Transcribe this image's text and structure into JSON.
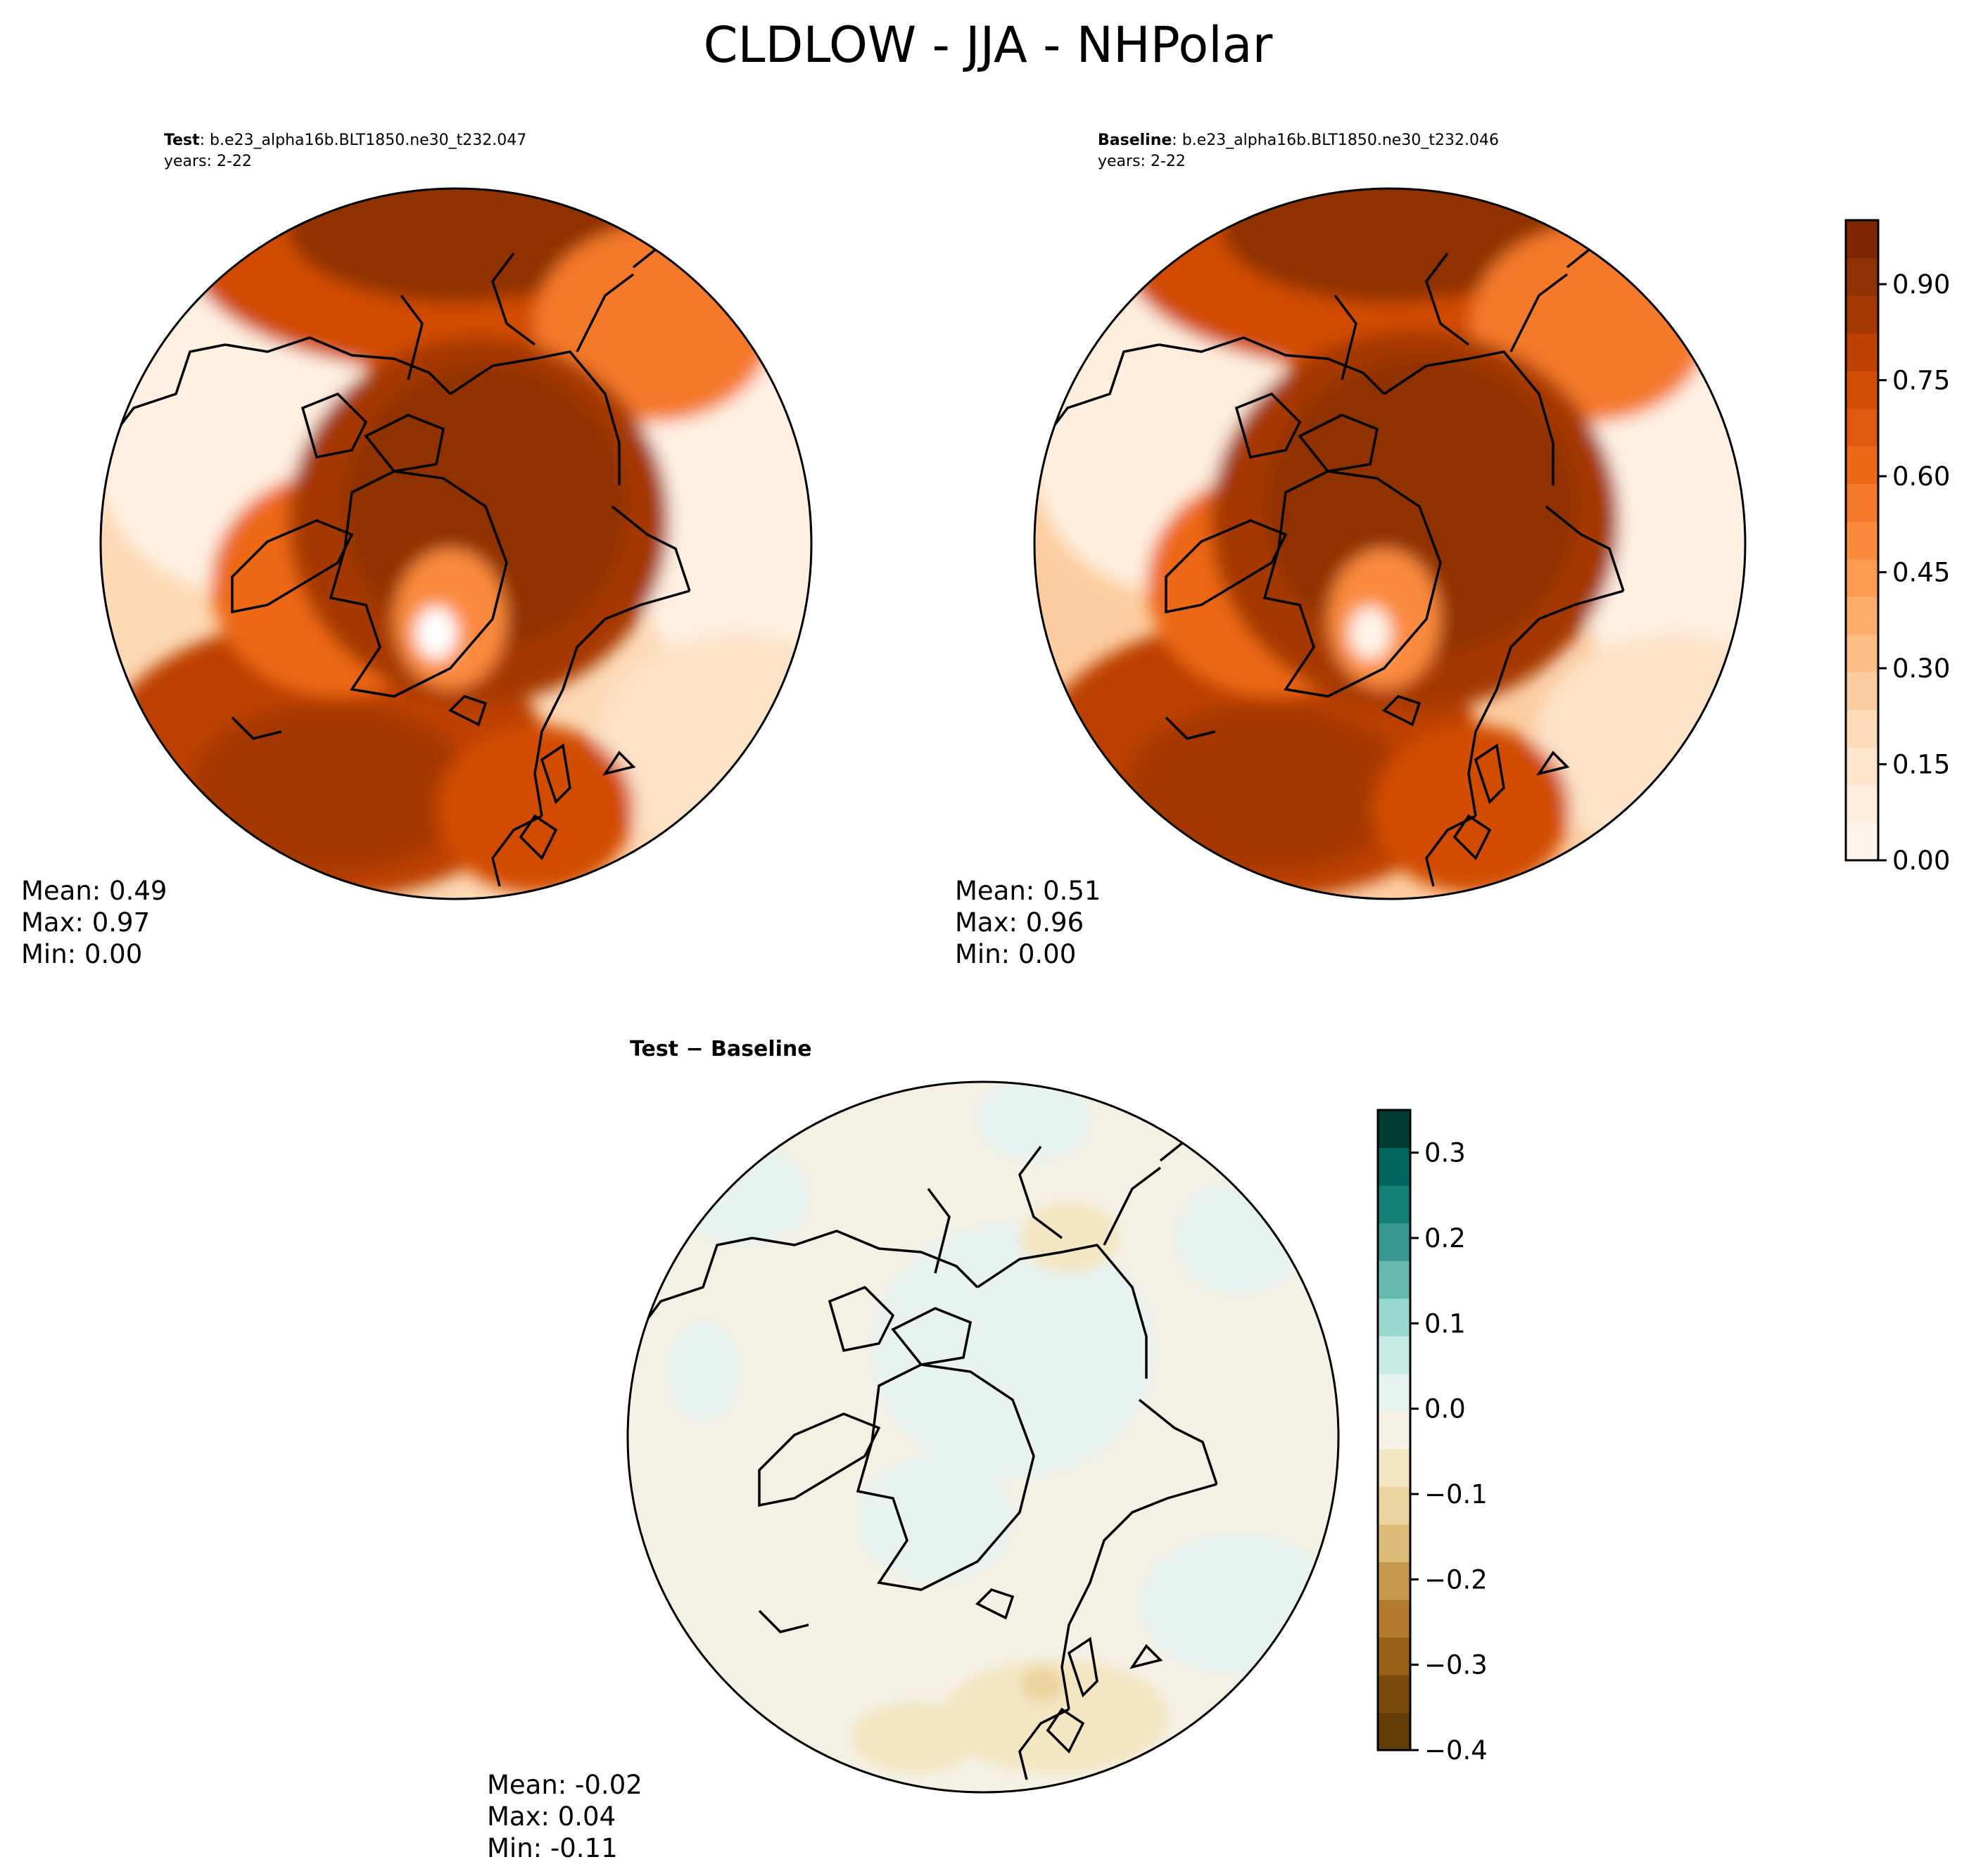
{
  "figure": {
    "title": "CLDLOW - JJA - NHPolar"
  },
  "chart_data": [
    {
      "type": "heatmap",
      "projection": "north-polar-stereographic",
      "panel": "test",
      "label_bold": "Test",
      "case_name": ": b.e23_alpha16b.BLT1850.ne30_t232.047",
      "years": "years: 2-22",
      "stats": {
        "mean": "Mean:  0.49",
        "max": "Max:  0.97",
        "min": "Min:  0.00"
      },
      "pole_value": 0.85,
      "color_range": [
        0.0,
        1.0
      ]
    },
    {
      "type": "heatmap",
      "projection": "north-polar-stereographic",
      "panel": "baseline",
      "label_bold": "Baseline",
      "case_name": ": b.e23_alpha16b.BLT1850.ne30_t232.046",
      "years": "years: 2-22",
      "stats": {
        "mean": "Mean:  0.51",
        "max": "Max:  0.96",
        "min": "Min:  0.00"
      },
      "pole_value": 0.88,
      "color_range": [
        0.0,
        1.0
      ]
    },
    {
      "type": "heatmap",
      "projection": "north-polar-stereographic",
      "panel": "difference",
      "title": "Test − Baseline",
      "stats": {
        "mean": "Mean: -0.02",
        "max": "Max:  0.04",
        "min": "Min: -0.11"
      },
      "color_range": [
        -0.4,
        0.35
      ]
    }
  ],
  "colorbars": {
    "abs": {
      "ticks": [
        "0.00",
        "0.15",
        "0.30",
        "0.45",
        "0.60",
        "0.75",
        "0.90"
      ],
      "tick_values": [
        0.0,
        0.15,
        0.3,
        0.45,
        0.6,
        0.75,
        0.9
      ],
      "range": [
        0.0,
        1.0
      ],
      "colors": [
        "#fff5eb",
        "#ffeedd",
        "#fee6cd",
        "#fddbb9",
        "#fdcda1",
        "#fdbe86",
        "#fdad6a",
        "#fd9b51",
        "#fa8a3c",
        "#f4792a",
        "#ed6819",
        "#e0590e",
        "#d14c05",
        "#bc4102",
        "#a43903",
        "#8f3204",
        "#7f2704"
      ]
    },
    "diff": {
      "ticks": [
        "−0.4",
        "−0.3",
        "−0.2",
        "−0.1",
        "0.0",
        "0.1",
        "0.2",
        "0.3"
      ],
      "tick_values": [
        -0.4,
        -0.3,
        -0.2,
        -0.1,
        0.0,
        0.1,
        0.2,
        0.3
      ],
      "range": [
        -0.4,
        0.35
      ],
      "colors": [
        "#643c07",
        "#7c4b0b",
        "#985f16",
        "#b3792c",
        "#c7994f",
        "#dbbb77",
        "#ebd49f",
        "#f4e6c2",
        "#f4f0e4",
        "#e6f3f1",
        "#c7eae5",
        "#98d8cf",
        "#65b9ad",
        "#35978f",
        "#137f75",
        "#01665e",
        "#003c30"
      ]
    }
  },
  "colors": {
    "land_outline": "#000000",
    "pole_dark": "#8f3204"
  }
}
